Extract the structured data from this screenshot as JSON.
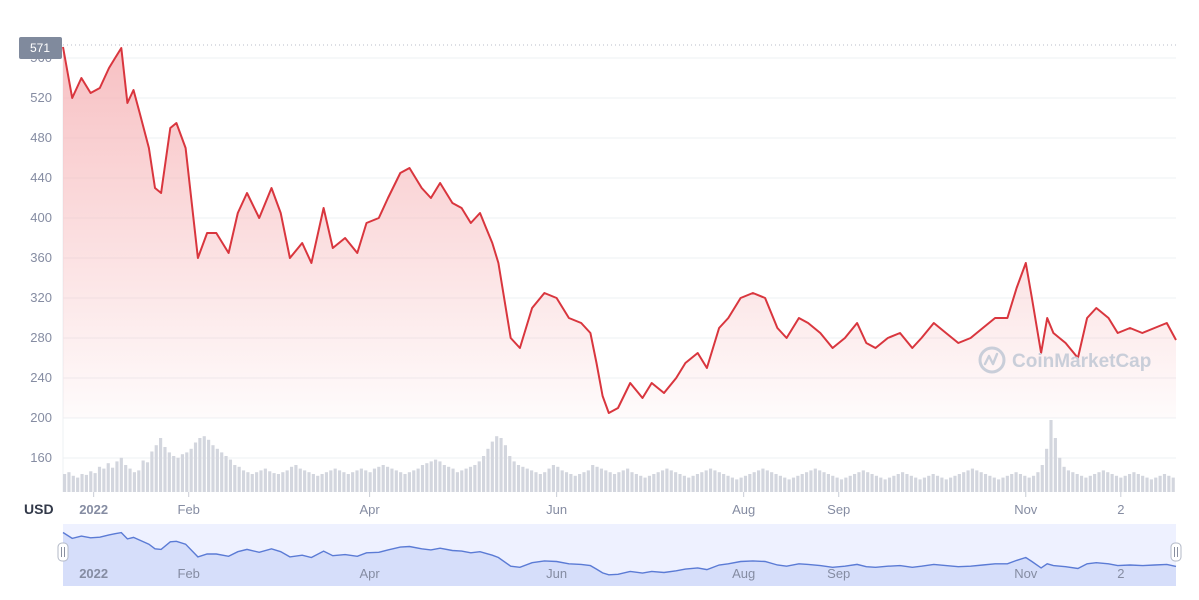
{
  "currency_label": "USD",
  "current_price_badge": "571",
  "watermark": "CoinMarketCap",
  "colors": {
    "line": "#d9363e",
    "fill_top": "#f6b5b8",
    "volume": "#d3d6de",
    "grid": "#eef0f3",
    "tick_text": "#858ca2",
    "badge_bg": "#808a9d",
    "navigator_fill": "#eef1ff",
    "navigator_line": "#5b7bd5",
    "watermark": "#c9ced9"
  },
  "chart_data": {
    "type": "line",
    "y_axis_ticks": [
      "160",
      "200",
      "240",
      "280",
      "320",
      "360",
      "400",
      "440",
      "480",
      "520",
      "560"
    ],
    "ylim": [
      130,
      575
    ],
    "x_axis_ticks": [
      "2022",
      "Feb",
      "Apr",
      "Jun",
      "Aug",
      "Sep",
      "Nov",
      "2"
    ],
    "grid": true,
    "series": [
      {
        "x": [
          "2021-12-22",
          "2021-12-25",
          "2021-12-28",
          "2021-12-31",
          "2022-01-03",
          "2022-01-06",
          "2022-01-08",
          "2022-01-10",
          "2022-01-12",
          "2022-01-14",
          "2022-01-16",
          "2022-01-19",
          "2022-01-21",
          "2022-01-23",
          "2022-01-26",
          "2022-01-28",
          "2022-01-31",
          "2022-02-04",
          "2022-02-07",
          "2022-02-10",
          "2022-02-14",
          "2022-02-17",
          "2022-02-20",
          "2022-02-24",
          "2022-02-28",
          "2022-03-03",
          "2022-03-06",
          "2022-03-10",
          "2022-03-13",
          "2022-03-17",
          "2022-03-20",
          "2022-03-24",
          "2022-03-28",
          "2022-03-31",
          "2022-04-04",
          "2022-04-07",
          "2022-04-11",
          "2022-04-14",
          "2022-04-18",
          "2022-04-21",
          "2022-04-24",
          "2022-04-28",
          "2022-05-01",
          "2022-05-04",
          "2022-05-07",
          "2022-05-09",
          "2022-05-11",
          "2022-05-13",
          "2022-05-17",
          "2022-05-20",
          "2022-05-24",
          "2022-05-28",
          "2022-06-01",
          "2022-06-05",
          "2022-06-09",
          "2022-06-12",
          "2022-06-14",
          "2022-06-16",
          "2022-06-18",
          "2022-06-21",
          "2022-06-25",
          "2022-06-29",
          "2022-07-02",
          "2022-07-06",
          "2022-07-10",
          "2022-07-13",
          "2022-07-17",
          "2022-07-20",
          "2022-07-24",
          "2022-07-27",
          "2022-07-31",
          "2022-08-04",
          "2022-08-08",
          "2022-08-12",
          "2022-08-15",
          "2022-08-19",
          "2022-08-22",
          "2022-08-26",
          "2022-08-30",
          "2022-09-03",
          "2022-09-07",
          "2022-09-10",
          "2022-09-13",
          "2022-09-17",
          "2022-09-21",
          "2022-09-25",
          "2022-09-28",
          "2022-10-02",
          "2022-10-06",
          "2022-10-10",
          "2022-10-14",
          "2022-10-18",
          "2022-10-22",
          "2022-10-26",
          "2022-10-29",
          "2022-11-01",
          "2022-11-03",
          "2022-11-06",
          "2022-11-08",
          "2022-11-10",
          "2022-11-14",
          "2022-11-18",
          "2022-11-21",
          "2022-11-24",
          "2022-11-28",
          "2022-12-01",
          "2022-12-05",
          "2022-12-09",
          "2022-12-13",
          "2022-12-17",
          "2022-12-20"
        ],
        "y": [
          571,
          520,
          540,
          525,
          530,
          550,
          560,
          570,
          515,
          528,
          505,
          470,
          430,
          425,
          490,
          495,
          470,
          360,
          385,
          385,
          365,
          405,
          425,
          400,
          430,
          405,
          360,
          375,
          355,
          410,
          370,
          380,
          365,
          395,
          400,
          420,
          445,
          450,
          430,
          420,
          435,
          415,
          410,
          395,
          405,
          390,
          375,
          355,
          280,
          270,
          310,
          325,
          320,
          300,
          295,
          285,
          255,
          222,
          205,
          210,
          235,
          220,
          235,
          225,
          240,
          255,
          265,
          250,
          290,
          300,
          320,
          325,
          320,
          290,
          280,
          300,
          295,
          285,
          270,
          280,
          295,
          275,
          270,
          280,
          285,
          270,
          280,
          295,
          285,
          275,
          280,
          290,
          300,
          300,
          330,
          355,
          320,
          265,
          300,
          285,
          275,
          260,
          300,
          310,
          300,
          285,
          290,
          285,
          290,
          295,
          278
        ]
      }
    ],
    "volume": {
      "x_start": "2021-12-22",
      "x_end": "2022-12-20",
      "values": [
        20,
        22,
        18,
        16,
        20,
        19,
        23,
        21,
        28,
        26,
        32,
        27,
        34,
        38,
        30,
        26,
        22,
        24,
        35,
        33,
        45,
        52,
        60,
        50,
        44,
        40,
        38,
        42,
        44,
        48,
        55,
        60,
        62,
        58,
        52,
        48,
        44,
        40,
        36,
        30,
        28,
        24,
        22,
        20,
        22,
        24,
        26,
        23,
        21,
        20,
        22,
        24,
        28,
        30,
        26,
        24,
        22,
        20,
        18,
        20,
        22,
        24,
        26,
        24,
        22,
        20,
        22,
        24,
        26,
        24,
        22,
        26,
        28,
        30,
        28,
        26,
        24,
        22,
        20,
        22,
        24,
        26,
        30,
        32,
        34,
        36,
        34,
        30,
        28,
        26,
        22,
        24,
        26,
        28,
        30,
        34,
        40,
        48,
        56,
        62,
        60,
        52,
        40,
        34,
        30,
        28,
        26,
        24,
        22,
        20,
        22,
        26,
        30,
        28,
        24,
        22,
        20,
        18,
        20,
        22,
        24,
        30,
        28,
        26,
        24,
        22,
        20,
        22,
        24,
        26,
        22,
        20,
        18,
        16,
        18,
        20,
        22,
        24,
        26,
        24,
        22,
        20,
        18,
        16,
        18,
        20,
        22,
        24,
        26,
        24,
        22,
        20,
        18,
        16,
        14,
        16,
        18,
        20,
        22,
        24,
        26,
        24,
        22,
        20,
        18,
        16,
        14,
        16,
        18,
        20,
        22,
        24,
        26,
        24,
        22,
        20,
        18,
        16,
        14,
        16,
        18,
        20,
        22,
        24,
        22,
        20,
        18,
        16,
        14,
        16,
        18,
        20,
        22,
        20,
        18,
        16,
        14,
        16,
        18,
        20,
        18,
        16,
        14,
        16,
        18,
        20,
        22,
        24,
        26,
        24,
        22,
        20,
        18,
        16,
        14,
        16,
        18,
        20,
        22,
        20,
        18,
        16,
        18,
        22,
        30,
        48,
        80,
        60,
        38,
        28,
        24,
        22,
        20,
        18,
        16,
        18,
        20,
        22,
        24,
        22,
        20,
        18,
        16,
        18,
        20,
        22,
        20,
        18,
        16,
        14,
        16,
        18,
        20,
        18,
        16
      ]
    }
  }
}
